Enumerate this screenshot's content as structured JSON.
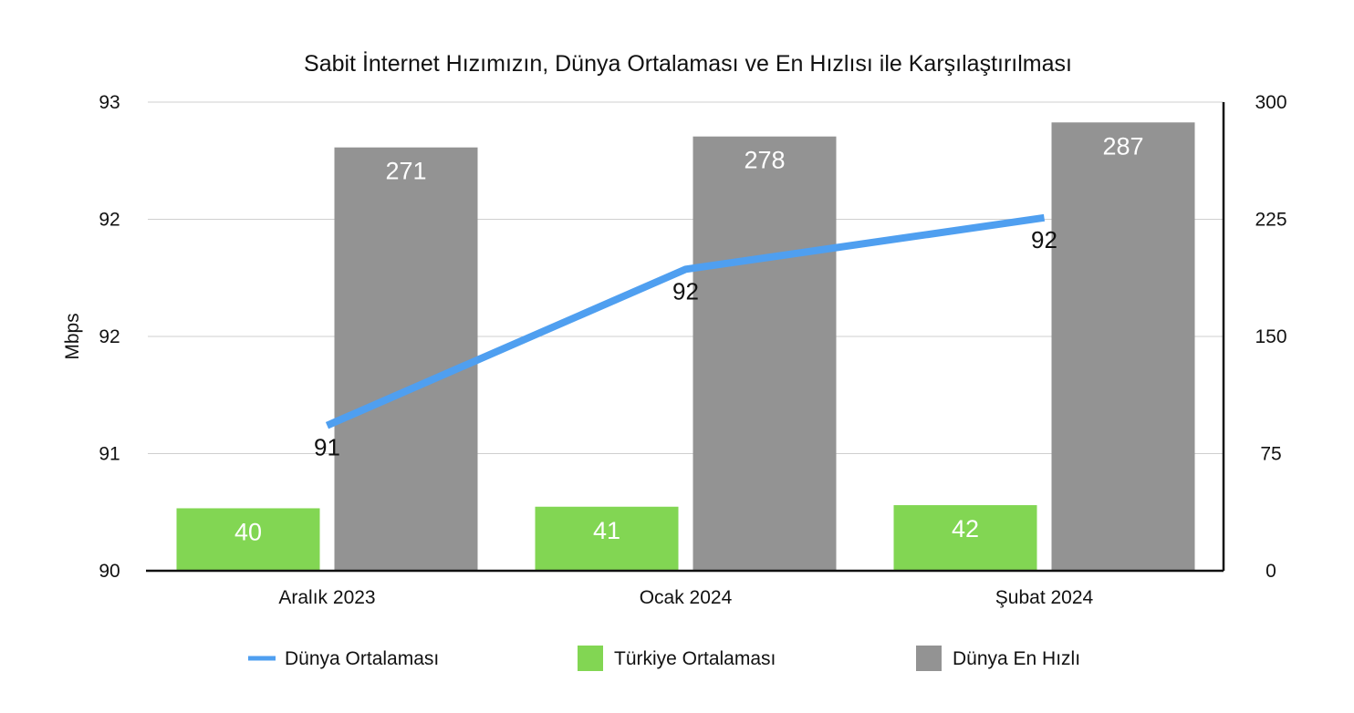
{
  "chart_data": {
    "type": "bar",
    "title": "Sabit İnternet Hızımızın, Dünya Ortalaması ve En Hızlısı ile Karşılaştırılması",
    "ylabel": "Mbps",
    "categories": [
      "Aralık 2023",
      "Ocak 2024",
      "Şubat 2024"
    ],
    "left_axis": {
      "ylim": [
        90,
        93
      ],
      "tick_values": [
        90,
        90.75,
        91.5,
        92.25,
        93
      ],
      "tick_labels": [
        "90",
        "91",
        "92",
        "92",
        "93"
      ]
    },
    "right_axis": {
      "ylim": [
        0,
        300
      ],
      "tick_values": [
        0,
        75,
        150,
        225,
        300
      ],
      "tick_labels": [
        "0",
        "75",
        "150",
        "225",
        "300"
      ]
    },
    "series": [
      {
        "name": "Dünya Ortalaması",
        "kind": "line",
        "axis": "left",
        "values": [
          90.93,
          91.93,
          92.26
        ],
        "labels": [
          "91",
          "92",
          "92"
        ],
        "color": "#4f9ff0"
      },
      {
        "name": "Türkiye Ortalaması",
        "kind": "bar",
        "axis": "right",
        "values": [
          40,
          41,
          42
        ],
        "labels": [
          "40",
          "41",
          "42"
        ],
        "color": "#82d653"
      },
      {
        "name": "Dünya En Hızlı",
        "kind": "bar",
        "axis": "right",
        "values": [
          271,
          278,
          287
        ],
        "labels": [
          "271",
          "278",
          "287"
        ],
        "color": "#939393"
      }
    ],
    "grid": true,
    "legend_position": "bottom"
  }
}
